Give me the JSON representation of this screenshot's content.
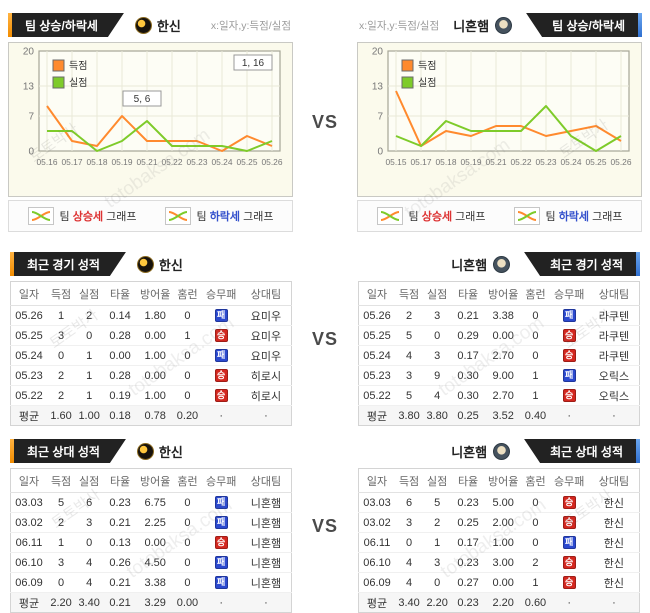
{
  "vs_label": "VS",
  "watermark": {
    "kr": "토토박사",
    "en": "totobaksa.com"
  },
  "teams": {
    "left": {
      "name": "한신"
    },
    "right": {
      "name": "니혼햄"
    }
  },
  "sections": {
    "trend": {
      "title": "팀 상승/하락세",
      "axis_note": "x:일자,y:득점/실점",
      "footer": [
        {
          "pre": "팀 ",
          "em": "상승세",
          "post": " 그래프",
          "em_color": "#dd3333"
        },
        {
          "pre": "팀 ",
          "em": "하락세",
          "post": " 그래프",
          "em_color": "#3350cc"
        }
      ]
    },
    "recent": {
      "title": "최근 경기 성적"
    },
    "h2h": {
      "title": "최근 상대 성적"
    }
  },
  "colors": {
    "accent_left": "#f28c00",
    "accent_right": "#2f6fd0",
    "score_line": "#ff8a2e",
    "concede_line": "#7ecb2a",
    "win_badge": "#d3271f",
    "loss_badge": "#2b49cf"
  },
  "chart_data": [
    {
      "type": "line",
      "team": "한신",
      "x": [
        "05.16",
        "05.17",
        "05.18",
        "05.19",
        "05.21",
        "05.22",
        "05.23",
        "05.24",
        "05.25",
        "05.26"
      ],
      "ylim": [
        0,
        20
      ],
      "yticks": [
        0,
        7,
        13,
        20
      ],
      "grid": true,
      "legend_position": "top-left",
      "series": [
        {
          "name": "득점",
          "color": "#ff8a2e",
          "values": [
            9,
            2,
            1,
            7,
            2,
            2,
            2,
            0,
            3,
            1
          ]
        },
        {
          "name": "실점",
          "color": "#7ecb2a",
          "values": [
            4,
            4,
            0,
            2,
            6,
            1,
            1,
            1,
            0,
            2
          ]
        }
      ],
      "annotations": [
        {
          "text": "1, 16",
          "anchor": "top-right"
        },
        {
          "text": "5, 6",
          "x_index": 3,
          "y_value": 8
        }
      ]
    },
    {
      "type": "line",
      "team": "니혼햄",
      "x": [
        "05.15",
        "05.17",
        "05.18",
        "05.19",
        "05.21",
        "05.22",
        "05.23",
        "05.24",
        "05.25",
        "05.26"
      ],
      "ylim": [
        0,
        20
      ],
      "yticks": [
        0,
        7,
        13,
        20
      ],
      "grid": true,
      "legend_position": "top-left",
      "series": [
        {
          "name": "득점",
          "color": "#ff8a2e",
          "values": [
            12,
            1,
            4,
            3,
            5,
            5,
            3,
            4,
            5,
            2
          ]
        },
        {
          "name": "실점",
          "color": "#7ecb2a",
          "values": [
            3,
            1,
            6,
            4,
            4,
            4,
            9,
            3,
            0,
            3
          ]
        }
      ],
      "annotations": []
    }
  ],
  "table_columns": [
    "일자",
    "득점",
    "실점",
    "타율",
    "방어율",
    "홈런",
    "승무패",
    "상대팀"
  ],
  "recent_tables": {
    "left": {
      "rows": [
        [
          "05.26",
          "1",
          "2",
          "0.14",
          "1.80",
          "0",
          "패",
          "요미우"
        ],
        [
          "05.25",
          "3",
          "0",
          "0.28",
          "0.00",
          "1",
          "승",
          "요미우"
        ],
        [
          "05.24",
          "0",
          "1",
          "0.00",
          "1.00",
          "0",
          "패",
          "요미우"
        ],
        [
          "05.23",
          "2",
          "1",
          "0.28",
          "0.00",
          "0",
          "승",
          "히로시"
        ],
        [
          "05.22",
          "2",
          "1",
          "0.19",
          "1.00",
          "0",
          "승",
          "히로시"
        ]
      ],
      "avg": [
        "평균",
        "1.60",
        "1.00",
        "0.18",
        "0.78",
        "0.20",
        "·",
        "·"
      ]
    },
    "right": {
      "rows": [
        [
          "05.26",
          "2",
          "3",
          "0.21",
          "3.38",
          "0",
          "패",
          "라쿠텐"
        ],
        [
          "05.25",
          "5",
          "0",
          "0.29",
          "0.00",
          "0",
          "승",
          "라쿠텐"
        ],
        [
          "05.24",
          "4",
          "3",
          "0.17",
          "2.70",
          "0",
          "승",
          "라쿠텐"
        ],
        [
          "05.23",
          "3",
          "9",
          "0.30",
          "9.00",
          "1",
          "패",
          "오릭스"
        ],
        [
          "05.22",
          "5",
          "4",
          "0.30",
          "2.70",
          "1",
          "승",
          "오릭스"
        ]
      ],
      "avg": [
        "평균",
        "3.80",
        "3.80",
        "0.25",
        "3.52",
        "0.40",
        "·",
        "·"
      ]
    }
  },
  "h2h_tables": {
    "left": {
      "rows": [
        [
          "03.03",
          "5",
          "6",
          "0.23",
          "6.75",
          "0",
          "패",
          "니혼햄"
        ],
        [
          "03.02",
          "2",
          "3",
          "0.21",
          "2.25",
          "0",
          "패",
          "니혼햄"
        ],
        [
          "06.11",
          "1",
          "0",
          "0.13",
          "0.00",
          "0",
          "승",
          "니혼햄"
        ],
        [
          "06.10",
          "3",
          "4",
          "0.26",
          "4.50",
          "0",
          "패",
          "니혼햄"
        ],
        [
          "06.09",
          "0",
          "4",
          "0.21",
          "3.38",
          "0",
          "패",
          "니혼햄"
        ]
      ],
      "avg": [
        "평균",
        "2.20",
        "3.40",
        "0.21",
        "3.29",
        "0.00",
        "·",
        "·"
      ]
    },
    "right": {
      "rows": [
        [
          "03.03",
          "6",
          "5",
          "0.23",
          "5.00",
          "0",
          "승",
          "한신"
        ],
        [
          "03.02",
          "3",
          "2",
          "0.25",
          "2.00",
          "0",
          "승",
          "한신"
        ],
        [
          "06.11",
          "0",
          "1",
          "0.17",
          "1.00",
          "0",
          "패",
          "한신"
        ],
        [
          "06.10",
          "4",
          "3",
          "0.23",
          "3.00",
          "2",
          "승",
          "한신"
        ],
        [
          "06.09",
          "4",
          "0",
          "0.27",
          "0.00",
          "1",
          "승",
          "한신"
        ]
      ],
      "avg": [
        "평균",
        "3.40",
        "2.20",
        "0.23",
        "2.20",
        "0.60",
        "·",
        "·"
      ]
    }
  }
}
